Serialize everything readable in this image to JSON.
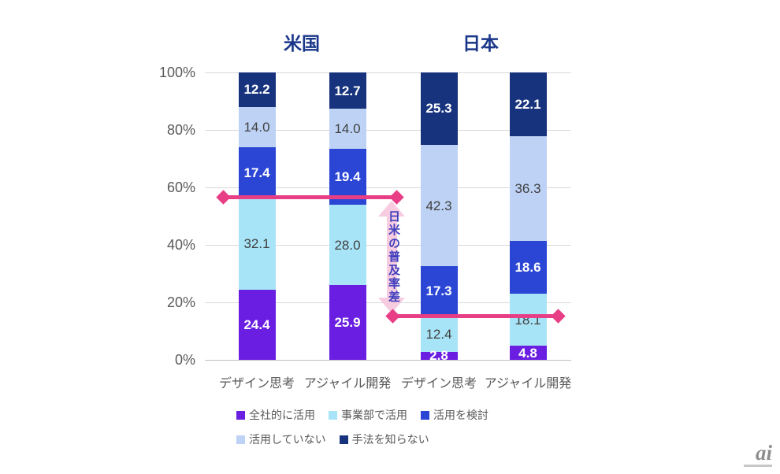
{
  "chart_data": {
    "type": "bar",
    "stacked": true,
    "value_unit": "%",
    "group_titles": [
      "米国",
      "日本"
    ],
    "group_title_color": "#1A3689",
    "categories": [
      "デザイン思考",
      "アジャイル開発",
      "デザイン思考",
      "アジャイル開発"
    ],
    "series": [
      {
        "name": "全社的に活用",
        "color": "#691EE2",
        "label_color": "#FFFFFF",
        "label_bold": true,
        "values": [
          24.4,
          25.9,
          2.8,
          4.8
        ]
      },
      {
        "name": "事業部で活用",
        "color": "#A8E4F7",
        "label_color": "#404040",
        "label_bold": false,
        "values": [
          32.1,
          28.0,
          12.4,
          18.1
        ]
      },
      {
        "name": "活用を検討",
        "color": "#2B46D5",
        "label_color": "#FFFFFF",
        "label_bold": true,
        "values": [
          17.4,
          19.4,
          17.3,
          18.6
        ]
      },
      {
        "name": "活用していない",
        "color": "#BDD2F5",
        "label_color": "#404040",
        "label_bold": false,
        "values": [
          14.0,
          14.0,
          42.3,
          36.3
        ]
      },
      {
        "name": "手法を知らない",
        "color": "#17337D",
        "label_color": "#FFFFFF",
        "label_bold": true,
        "values": [
          12.2,
          12.7,
          25.3,
          22.1
        ]
      }
    ],
    "y_ticks": [
      "100%",
      "80%",
      "60%",
      "40%",
      "20%",
      "0%"
    ],
    "ylim": [
      0,
      100
    ],
    "grid": true,
    "legend_position": "bottom-left",
    "annotation": {
      "label": "日米の普及率差",
      "line_color": "#E73E86",
      "arrow_color": "#F7CCE0",
      "label_color": "#4040BE",
      "us_reference_percent": 56.5,
      "japan_reference_percent": 15.2
    }
  },
  "logo": {
    "text": "ai"
  }
}
